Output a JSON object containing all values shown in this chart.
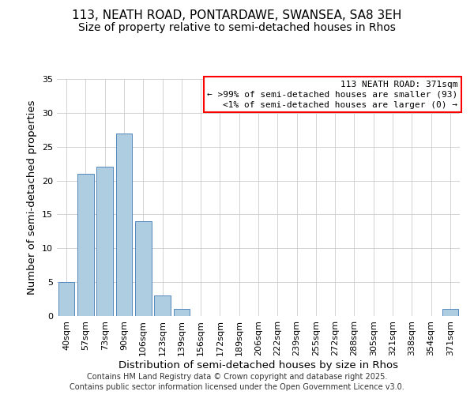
{
  "title": "113, NEATH ROAD, PONTARDAWE, SWANSEA, SA8 3EH",
  "subtitle": "Size of property relative to semi-detached houses in Rhos",
  "xlabel": "Distribution of semi-detached houses by size in Rhos",
  "ylabel": "Number of semi-detached properties",
  "categories": [
    "40sqm",
    "57sqm",
    "73sqm",
    "90sqm",
    "106sqm",
    "123sqm",
    "139sqm",
    "156sqm",
    "172sqm",
    "189sqm",
    "206sqm",
    "222sqm",
    "239sqm",
    "255sqm",
    "272sqm",
    "288sqm",
    "305sqm",
    "321sqm",
    "338sqm",
    "354sqm",
    "371sqm"
  ],
  "values": [
    5,
    21,
    22,
    27,
    14,
    3,
    1,
    0,
    0,
    0,
    0,
    0,
    0,
    0,
    0,
    0,
    0,
    0,
    0,
    0,
    1
  ],
  "bar_color": "#aecde0",
  "bar_edge_color": "#5588bb",
  "ylim": [
    0,
    35
  ],
  "yticks": [
    0,
    5,
    10,
    15,
    20,
    25,
    30,
    35
  ],
  "legend_title": "113 NEATH ROAD: 371sqm",
  "legend_line1": "← >99% of semi-detached houses are smaller (93)",
  "legend_line2": "<1% of semi-detached houses are larger (0) →",
  "footer_line1": "Contains HM Land Registry data © Crown copyright and database right 2025.",
  "footer_line2": "Contains public sector information licensed under the Open Government Licence v3.0.",
  "bg_color": "#ffffff",
  "grid_color": "#cccccc",
  "title_fontsize": 11,
  "subtitle_fontsize": 10,
  "axis_label_fontsize": 9.5,
  "tick_fontsize": 8,
  "legend_fontsize": 8,
  "footer_fontsize": 7
}
